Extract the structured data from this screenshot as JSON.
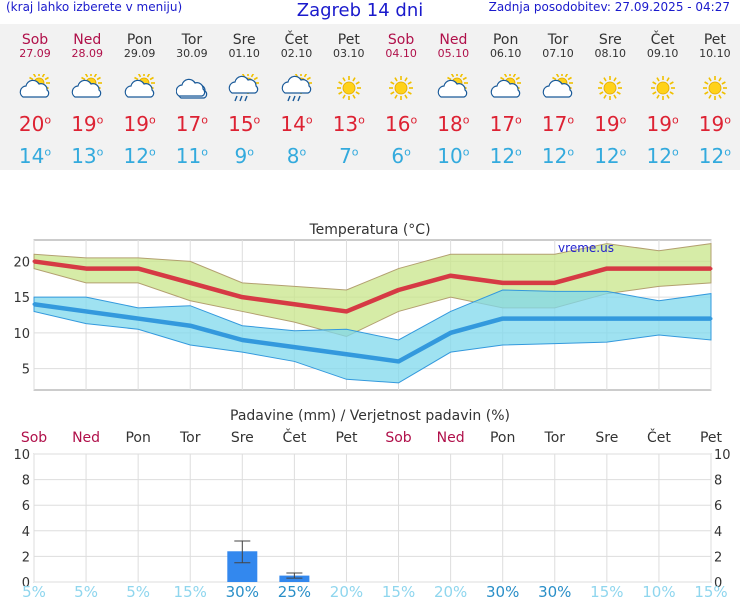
{
  "header": {
    "left": "(kraj lahko izberete v meniju)",
    "title": "Zagreb 14 dni",
    "updated": "Zadnja posodobitev: 27.09.2025 - 04:27"
  },
  "days": [
    {
      "name": "Sob",
      "date": "27.09",
      "weekend": true,
      "icon": "partly-cloudy-icon",
      "tmax": "20",
      "tmin": "14"
    },
    {
      "name": "Ned",
      "date": "28.09",
      "weekend": true,
      "icon": "partly-cloudy-icon",
      "tmax": "19",
      "tmin": "13"
    },
    {
      "name": "Pon",
      "date": "29.09",
      "weekend": false,
      "icon": "partly-cloudy-icon",
      "tmax": "19",
      "tmin": "12"
    },
    {
      "name": "Tor",
      "date": "30.09",
      "weekend": false,
      "icon": "cloudy-icon",
      "tmax": "17",
      "tmin": "11"
    },
    {
      "name": "Sre",
      "date": "01.10",
      "weekend": false,
      "icon": "rain-showers-icon",
      "tmax": "15",
      "tmin": "9"
    },
    {
      "name": "Čet",
      "date": "02.10",
      "weekend": false,
      "icon": "rain-showers-icon",
      "tmax": "14",
      "tmin": "8"
    },
    {
      "name": "Pet",
      "date": "03.10",
      "weekend": false,
      "icon": "sunny-icon",
      "tmax": "13",
      "tmin": "7"
    },
    {
      "name": "Sob",
      "date": "04.10",
      "weekend": true,
      "icon": "sunny-icon",
      "tmax": "16",
      "tmin": "6"
    },
    {
      "name": "Ned",
      "date": "05.10",
      "weekend": true,
      "icon": "partly-cloudy-icon",
      "tmax": "18",
      "tmin": "10"
    },
    {
      "name": "Pon",
      "date": "06.10",
      "weekend": false,
      "icon": "partly-cloudy-icon",
      "tmax": "17",
      "tmin": "12"
    },
    {
      "name": "Tor",
      "date": "07.10",
      "weekend": false,
      "icon": "partly-cloudy-icon",
      "tmax": "17",
      "tmin": "12"
    },
    {
      "name": "Sre",
      "date": "08.10",
      "weekend": false,
      "icon": "sunny-icon",
      "tmax": "19",
      "tmin": "12"
    },
    {
      "name": "Čet",
      "date": "09.10",
      "weekend": false,
      "icon": "sunny-icon",
      "tmax": "19",
      "tmin": "12"
    },
    {
      "name": "Pet",
      "date": "10.10",
      "weekend": false,
      "icon": "sunny-icon",
      "tmax": "19",
      "tmin": "12"
    }
  ],
  "degree_symbol": "o",
  "colors": {
    "max": "#dd2233",
    "min": "#33aadd",
    "weekend": "#b0104a",
    "weekday": "#333333"
  },
  "chart_data": [
    {
      "type": "line",
      "title": "Temperatura (°C)",
      "watermark": "vreme.us",
      "ylim": [
        2,
        23
      ],
      "yticks": [
        5,
        10,
        15,
        20
      ],
      "grid": true,
      "series": [
        {
          "name": "max",
          "color": "#d63a44",
          "values": [
            20,
            19,
            19,
            17,
            15,
            14,
            13,
            16,
            18,
            17,
            17,
            19,
            19,
            19
          ],
          "range_low": [
            19,
            17,
            17,
            14.5,
            13,
            11.5,
            9.5,
            13,
            15,
            13.5,
            13.5,
            15.5,
            16.5,
            17
          ],
          "range_high": [
            21,
            20.5,
            20.5,
            20,
            17,
            16.5,
            16,
            19,
            21,
            21,
            21,
            22.5,
            21.5,
            22.5
          ]
        },
        {
          "name": "min",
          "color": "#3399dd",
          "values": [
            14,
            13,
            12,
            11,
            9,
            8,
            7,
            6,
            10,
            12,
            12,
            12,
            12,
            12
          ],
          "range_low": [
            13,
            11.3,
            10.5,
            8.3,
            7.3,
            6,
            3.5,
            3,
            7.3,
            8.3,
            8.5,
            8.7,
            9.7,
            9
          ],
          "range_high": [
            15,
            15,
            13.5,
            13.8,
            11,
            10.3,
            10.5,
            9,
            13,
            16,
            15.8,
            15.8,
            14.5,
            15.5
          ]
        }
      ]
    },
    {
      "type": "bar",
      "title": "Padavine (mm) / Verjetnost padavin (%)",
      "ylim": [
        0,
        10
      ],
      "yticks": [
        0,
        2,
        4,
        6,
        8,
        10
      ],
      "grid": true,
      "categories": [
        "Sob",
        "Ned",
        "Pon",
        "Tor",
        "Sre",
        "Čet",
        "Pet",
        "Sob",
        "Ned",
        "Pon",
        "Tor",
        "Sre",
        "Čet",
        "Pet"
      ],
      "weekend": [
        true,
        true,
        false,
        false,
        false,
        false,
        false,
        true,
        true,
        false,
        false,
        false,
        false,
        false
      ],
      "values": [
        0,
        0,
        0,
        0,
        2.4,
        0.5,
        0,
        0,
        0,
        0,
        0,
        0,
        0,
        0
      ],
      "error_low": [
        null,
        null,
        null,
        null,
        1.5,
        0.3,
        null,
        null,
        null,
        null,
        null,
        null,
        null,
        null
      ],
      "error_high": [
        null,
        null,
        null,
        null,
        3.2,
        0.7,
        null,
        null,
        null,
        null,
        null,
        null,
        null,
        null
      ],
      "probability_labels": [
        "5%",
        "5%",
        "5%",
        "15%",
        "30%",
        "25%",
        "20%",
        "15%",
        "20%",
        "30%",
        "30%",
        "15%",
        "10%",
        "15%"
      ],
      "probability_emphasis": [
        false,
        false,
        false,
        false,
        true,
        true,
        false,
        false,
        false,
        true,
        true,
        false,
        false,
        false
      ]
    }
  ]
}
